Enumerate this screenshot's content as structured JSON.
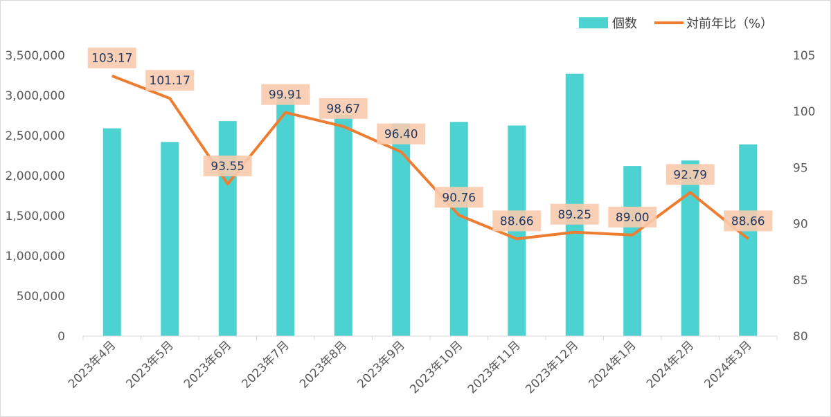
{
  "chart_data": {
    "type": "bar",
    "categories": [
      "2023年4月",
      "2023年5月",
      "2023年6月",
      "2023年7月",
      "2023年8月",
      "2023年9月",
      "2023年10月",
      "2023年11月",
      "2023年12月",
      "2024年1月",
      "2024年2月",
      "2024年3月"
    ],
    "series": [
      {
        "name": "個数",
        "type": "bar",
        "axis": "left",
        "color": "#4dd2d2",
        "values": [
          2590000,
          2420000,
          2680000,
          3000000,
          2760000,
          2650000,
          2670000,
          2625000,
          3270000,
          2120000,
          2190000,
          2390000
        ]
      },
      {
        "name": "対前年比（%）",
        "type": "line",
        "axis": "right",
        "color": "#ed7d31",
        "values": [
          103.17,
          101.17,
          93.55,
          99.91,
          98.67,
          96.4,
          90.76,
          88.66,
          89.25,
          89.0,
          92.79,
          88.66
        ],
        "labels": [
          "103.17",
          "101.17",
          "93.55",
          "99.91",
          "98.67",
          "96.40",
          "90.76",
          "88.66",
          "89.25",
          "89.00",
          "92.79",
          "88.66"
        ]
      }
    ],
    "y_left": {
      "ylim": [
        0,
        3500000
      ],
      "ticks": [
        0,
        500000,
        1000000,
        1500000,
        2000000,
        2500000,
        3000000,
        3500000
      ],
      "tick_labels": [
        "0",
        "500,000",
        "1,000,000",
        "1,500,000",
        "2,000,000",
        "2,500,000",
        "3,000,000",
        "3,500,000"
      ]
    },
    "y_right": {
      "ylim": [
        80,
        105
      ],
      "ticks": [
        80,
        85,
        90,
        95,
        100,
        105
      ],
      "tick_labels": [
        "80",
        "85",
        "90",
        "95",
        "100",
        "105"
      ]
    },
    "legend_position": "top-right",
    "grid": false,
    "label_box_color": "#f8cbad",
    "label_text_color": "#1f3864"
  }
}
